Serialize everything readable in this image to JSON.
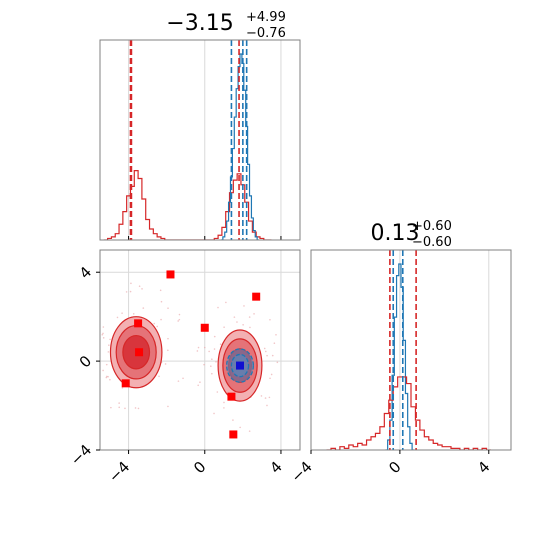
{
  "colors": {
    "red": "#d62728",
    "blue": "#1f77b4",
    "red_fill_outer": "#f3b0b2",
    "red_fill_mid": "#e57378",
    "red_fill_inner": "#d8353c",
    "blue_fill": "#4d8fc9",
    "grid": "#d9d9d9",
    "frame": "#808080",
    "marker": "#ff0000"
  },
  "chart_data": [
    {
      "type": "histogram",
      "panel": "marginal-x",
      "title": {
        "value": "−3.15",
        "plus": "+4.99",
        "minus": "−0.76"
      },
      "xlim": [
        -5.5,
        5.0
      ],
      "grid_x": [
        -4,
        0,
        4
      ],
      "series": [
        {
          "color": "red",
          "bin_centers": [
            -5.2,
            -5.0,
            -4.8,
            -4.6,
            -4.4,
            -4.2,
            -4.0,
            -3.8,
            -3.6,
            -3.4,
            -3.2,
            -3.0,
            -2.8,
            -2.6,
            -2.4,
            -2.2,
            -2.0,
            -1.8,
            -1.6,
            -1.4,
            -1.2,
            -1.0,
            -0.8,
            -0.6,
            -0.4,
            -0.2,
            0.0,
            0.2,
            0.4,
            0.6,
            0.8,
            1.0,
            1.2,
            1.4,
            1.6,
            1.8,
            2.0,
            2.2,
            2.4,
            2.6,
            2.8,
            3.0,
            3.2,
            3.4
          ],
          "counts": [
            0,
            1,
            2,
            4,
            10,
            18,
            28,
            34,
            44,
            39,
            26,
            13,
            7,
            4,
            2,
            1,
            0,
            0,
            0,
            0,
            0,
            0,
            0,
            0,
            0,
            0,
            0,
            0,
            0,
            1,
            3,
            8,
            18,
            30,
            38,
            42,
            35,
            24,
            12,
            5,
            2,
            1,
            0,
            0
          ]
        },
        {
          "color": "blue",
          "bin_centers": [
            0.9,
            1.0,
            1.1,
            1.2,
            1.3,
            1.4,
            1.5,
            1.6,
            1.7,
            1.8,
            1.9,
            2.0,
            2.1,
            2.2,
            2.3,
            2.4,
            2.5,
            2.6,
            2.7,
            2.8
          ],
          "counts": [
            0,
            2,
            5,
            12,
            24,
            40,
            58,
            78,
            96,
            110,
            118,
            112,
            95,
            72,
            48,
            28,
            14,
            6,
            2,
            0
          ]
        }
      ],
      "vlines": [
        {
          "x": -3.9,
          "color": "red"
        },
        {
          "x": -3.85,
          "color": "red"
        },
        {
          "x": 1.4,
          "color": "blue"
        },
        {
          "x": 1.8,
          "color": "red"
        },
        {
          "x": 2.0,
          "color": "blue"
        },
        {
          "x": 2.2,
          "color": "blue"
        }
      ]
    },
    {
      "type": "contour",
      "panel": "joint",
      "xlim": [
        -5.5,
        5.0
      ],
      "ylim": [
        -4.0,
        5.0
      ],
      "xticks": [
        "−4",
        "0",
        "4"
      ],
      "yticks": [
        "−4",
        "0",
        "4"
      ],
      "xtick_values": [
        -4,
        0,
        4
      ],
      "ytick_values": [
        -4,
        0,
        4
      ],
      "red_blobs": [
        {
          "cx": -3.6,
          "cy": 0.4,
          "levels": [
            {
              "rx": 1.35,
              "ry": 1.6,
              "fill": "red_fill_outer"
            },
            {
              "rx": 1.05,
              "ry": 1.2,
              "fill": "red_fill_mid"
            },
            {
              "rx": 0.7,
              "ry": 0.75,
              "fill": "red_fill_inner"
            }
          ]
        },
        {
          "cx": 1.85,
          "cy": -0.2,
          "levels": [
            {
              "rx": 1.15,
              "ry": 1.6,
              "fill": "red_fill_outer"
            },
            {
              "rx": 0.9,
              "ry": 1.2,
              "fill": "red_fill_mid"
            },
            {
              "rx": 0.6,
              "ry": 0.75,
              "fill": "red_fill_inner"
            }
          ]
        }
      ],
      "blue_blob": {
        "cx": 1.85,
        "cy": -0.2,
        "levels": [
          {
            "rx": 0.7,
            "ry": 0.75
          },
          {
            "rx": 0.45,
            "ry": 0.5
          }
        ]
      },
      "red_markers": [
        {
          "x": -1.8,
          "y": 3.9
        },
        {
          "x": 2.7,
          "y": 2.9
        },
        {
          "x": 0.0,
          "y": 1.5
        },
        {
          "x": -3.5,
          "y": 1.7
        },
        {
          "x": -3.45,
          "y": 0.4
        },
        {
          "x": -4.15,
          "y": -1.0
        },
        {
          "x": 1.4,
          "y": -1.6
        },
        {
          "x": 1.5,
          "y": -3.3
        }
      ],
      "blue_marker": {
        "x": 1.85,
        "y": -0.2
      }
    },
    {
      "type": "histogram",
      "panel": "marginal-y",
      "title": {
        "value": "0.13",
        "plus": "+0.60",
        "minus": "−0.60"
      },
      "xlim": [
        -4.0,
        5.0
      ],
      "xticks": [
        "−4",
        "0",
        "4"
      ],
      "xtick_values": [
        -4,
        0,
        4
      ],
      "series": [
        {
          "color": "blue",
          "bin_centers": [
            -0.6,
            -0.5,
            -0.4,
            -0.3,
            -0.2,
            -0.1,
            0.0,
            0.1,
            0.2,
            0.3,
            0.4,
            0.5,
            0.6
          ],
          "counts": [
            0,
            6,
            18,
            45,
            80,
            105,
            112,
            98,
            66,
            34,
            14,
            4,
            0
          ]
        },
        {
          "color": "red",
          "bin_centers": [
            -3.2,
            -3.0,
            -2.8,
            -2.6,
            -2.4,
            -2.2,
            -2.0,
            -1.8,
            -1.6,
            -1.4,
            -1.2,
            -1.0,
            -0.8,
            -0.6,
            -0.4,
            -0.2,
            0.0,
            0.2,
            0.4,
            0.6,
            0.8,
            1.0,
            1.2,
            1.4,
            1.6,
            1.8,
            2.0,
            2.2,
            2.4,
            2.6,
            2.8,
            3.0,
            3.2,
            3.4,
            3.6,
            3.8,
            4.0
          ],
          "counts": [
            0,
            1,
            0,
            2,
            1,
            3,
            2,
            4,
            3,
            6,
            8,
            10,
            14,
            22,
            30,
            38,
            44,
            44,
            40,
            26,
            18,
            12,
            8,
            6,
            4,
            3,
            2,
            2,
            1,
            1,
            0,
            1,
            0,
            1,
            0,
            1,
            0
          ]
        }
      ],
      "vlines": [
        {
          "x": -0.45,
          "color": "red"
        },
        {
          "x": -0.3,
          "color": "blue"
        },
        {
          "x": 0.13,
          "color": "blue"
        },
        {
          "x": 0.73,
          "color": "red"
        }
      ]
    }
  ]
}
